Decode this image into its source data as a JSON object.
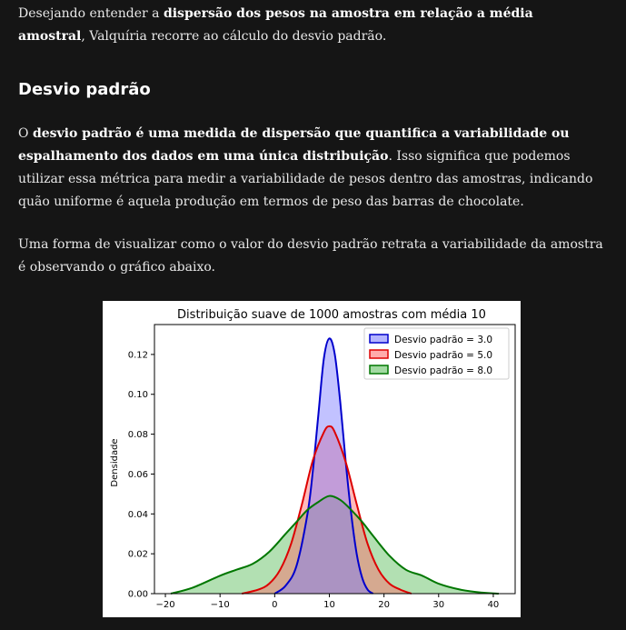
{
  "intro": {
    "text_a": "Desejando entender a ",
    "bold_a": "dispersão dos pesos na amostra em relação a média amostral",
    "text_b": ", Valquíria recorre ao cálculo do desvio padrão."
  },
  "section": {
    "heading": "Desvio padrão"
  },
  "definition": {
    "text_a": "O ",
    "bold_a": "desvio padrão é uma medida de dispersão que quantifica a variabilidade ou espalhamento dos dados em uma única distribuição",
    "text_b": ". Isso significa que podemos utilizar essa métrica para medir a variabilidade de pesos dentro das amostras, indicando quão uniforme é aquela produção em termos de peso das barras de chocolate."
  },
  "visual_intro": {
    "text": "Uma forma de visualizar como o valor do desvio padrão retrata a variabilidade da amostra é observando o gráfico abaixo."
  },
  "chart_data": {
    "type": "area",
    "title": "Distribuição suave de 1000 amostras com média 10",
    "xlabel": "",
    "ylabel": "Densidade",
    "xlim": [
      -22,
      44
    ],
    "ylim": [
      0,
      0.135
    ],
    "x_ticks": [
      -20,
      -10,
      0,
      10,
      20,
      30,
      40
    ],
    "x_tick_labels": [
      "−20",
      "−10",
      "0",
      "10",
      "20",
      "30",
      "40"
    ],
    "y_ticks": [
      0.0,
      0.02,
      0.04,
      0.06,
      0.08,
      0.1,
      0.12
    ],
    "y_tick_labels": [
      "0.00",
      "0.02",
      "0.04",
      "0.06",
      "0.08",
      "0.10",
      "0.12"
    ],
    "legend_position": "top-right",
    "grid": false,
    "series": [
      {
        "name": "Desvio padrão = 3.0",
        "color": "#0000cc",
        "fill": "#7777ff",
        "points": [
          [
            0,
            0
          ],
          [
            2,
            0.004
          ],
          [
            4,
            0.014
          ],
          [
            6,
            0.04
          ],
          [
            7,
            0.062
          ],
          [
            8,
            0.09
          ],
          [
            9,
            0.118
          ],
          [
            10,
            0.128
          ],
          [
            11,
            0.12
          ],
          [
            12,
            0.096
          ],
          [
            13,
            0.066
          ],
          [
            14,
            0.04
          ],
          [
            15,
            0.02
          ],
          [
            16,
            0.008
          ],
          [
            17,
            0.002
          ],
          [
            18,
            0
          ]
        ]
      },
      {
        "name": "Desvio padrão = 5.0",
        "color": "#dd0000",
        "fill": "#ff6666",
        "points": [
          [
            -6,
            0
          ],
          [
            -3,
            0.002
          ],
          [
            -1,
            0.005
          ],
          [
            1,
            0.012
          ],
          [
            3,
            0.025
          ],
          [
            5,
            0.045
          ],
          [
            7,
            0.067
          ],
          [
            9,
            0.081
          ],
          [
            10,
            0.084
          ],
          [
            11,
            0.081
          ],
          [
            13,
            0.066
          ],
          [
            15,
            0.045
          ],
          [
            17,
            0.025
          ],
          [
            19,
            0.012
          ],
          [
            21,
            0.005
          ],
          [
            23,
            0.002
          ],
          [
            25,
            0
          ]
        ]
      },
      {
        "name": "Desvio padrão = 8.0",
        "color": "#007700",
        "fill": "#55bb55",
        "points": [
          [
            -19,
            0
          ],
          [
            -15,
            0.003
          ],
          [
            -10,
            0.009
          ],
          [
            -7,
            0.012
          ],
          [
            -4,
            0.015
          ],
          [
            -1,
            0.021
          ],
          [
            2,
            0.03
          ],
          [
            4,
            0.036
          ],
          [
            6,
            0.042
          ],
          [
            8,
            0.046
          ],
          [
            10,
            0.049
          ],
          [
            12,
            0.047
          ],
          [
            14,
            0.042
          ],
          [
            16,
            0.036
          ],
          [
            18,
            0.029
          ],
          [
            21,
            0.019
          ],
          [
            24,
            0.012
          ],
          [
            27,
            0.009
          ],
          [
            30,
            0.005
          ],
          [
            34,
            0.002
          ],
          [
            38,
            0.0005
          ],
          [
            41,
            0
          ]
        ]
      }
    ]
  }
}
